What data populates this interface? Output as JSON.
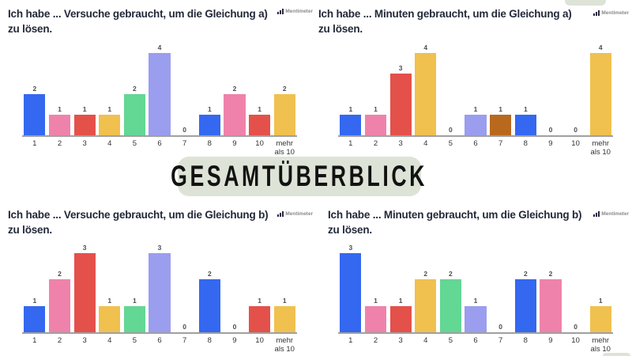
{
  "banner": {
    "text": "GESAMTÜBERBLICK",
    "bg": "#DDE3D6"
  },
  "brand": {
    "label": "Mentimeter"
  },
  "palette": {
    "bar_colors": [
      "#3568F0",
      "#EF82AB",
      "#E4514A",
      "#F0C14F",
      "#63D794",
      "#9B9DEF",
      "#B9691E"
    ],
    "axis": "#A0A0A0",
    "title_color": "#232939",
    "value_label_color": "#4D4D4D",
    "banner_bg": "#DDE3D6"
  },
  "chart_data": [
    {
      "type": "bar",
      "title": "Ich habe ... Versuche gebraucht, um die Gleichung a) zu lösen.",
      "title_lines": [
        "Ich habe ... Versuche gebraucht, um die Gleichung a)",
        "zu lösen."
      ],
      "categories": [
        "1",
        "2",
        "3",
        "4",
        "5",
        "6",
        "7",
        "8",
        "9",
        "10",
        "mehr als 10"
      ],
      "values": [
        2,
        1,
        1,
        1,
        2,
        4,
        0,
        1,
        2,
        1,
        2
      ],
      "xlabel": "",
      "ylabel": "",
      "ylim": [
        0,
        4
      ],
      "grid": false,
      "legend": false,
      "value_labels": true
    },
    {
      "type": "bar",
      "title": "Ich habe ... Minuten gebraucht, um die Gleichung a) zu lösen.",
      "title_lines": [
        "Ich habe ... Minuten gebraucht, um die Gleichung a)",
        "zu lösen."
      ],
      "categories": [
        "1",
        "2",
        "3",
        "4",
        "5",
        "6",
        "7",
        "8",
        "9",
        "10",
        "mehr als 10"
      ],
      "values": [
        1,
        1,
        3,
        4,
        0,
        1,
        1,
        1,
        0,
        0,
        4
      ],
      "xlabel": "",
      "ylabel": "",
      "ylim": [
        0,
        4
      ],
      "grid": false,
      "legend": false,
      "value_labels": true
    },
    {
      "type": "bar",
      "title": "Ich habe ... Versuche gebraucht, um die Gleichung b) zu lösen.",
      "title_lines": [
        "Ich habe ... Versuche gebraucht, um die Gleichung b)",
        "zu lösen."
      ],
      "categories": [
        "1",
        "2",
        "3",
        "4",
        "5",
        "6",
        "7",
        "8",
        "9",
        "10",
        "mehr als 10"
      ],
      "values": [
        1,
        2,
        3,
        1,
        1,
        3,
        0,
        2,
        0,
        1,
        1
      ],
      "xlabel": "",
      "ylabel": "",
      "ylim": [
        0,
        3
      ],
      "grid": false,
      "legend": false,
      "value_labels": true
    },
    {
      "type": "bar",
      "title": "Ich habe ... Minuten gebraucht, um die Gleichung b) zu lösen.",
      "title_lines": [
        "Ich habe ... Minuten gebraucht, um die Gleichung b)",
        "zu lösen."
      ],
      "categories": [
        "1",
        "2",
        "3",
        "4",
        "5",
        "6",
        "7",
        "8",
        "9",
        "10",
        "mehr als 10"
      ],
      "values": [
        3,
        1,
        1,
        2,
        2,
        1,
        0,
        2,
        2,
        0,
        1
      ],
      "xlabel": "",
      "ylabel": "",
      "ylim": [
        0,
        3
      ],
      "grid": false,
      "legend": false,
      "value_labels": true
    }
  ]
}
